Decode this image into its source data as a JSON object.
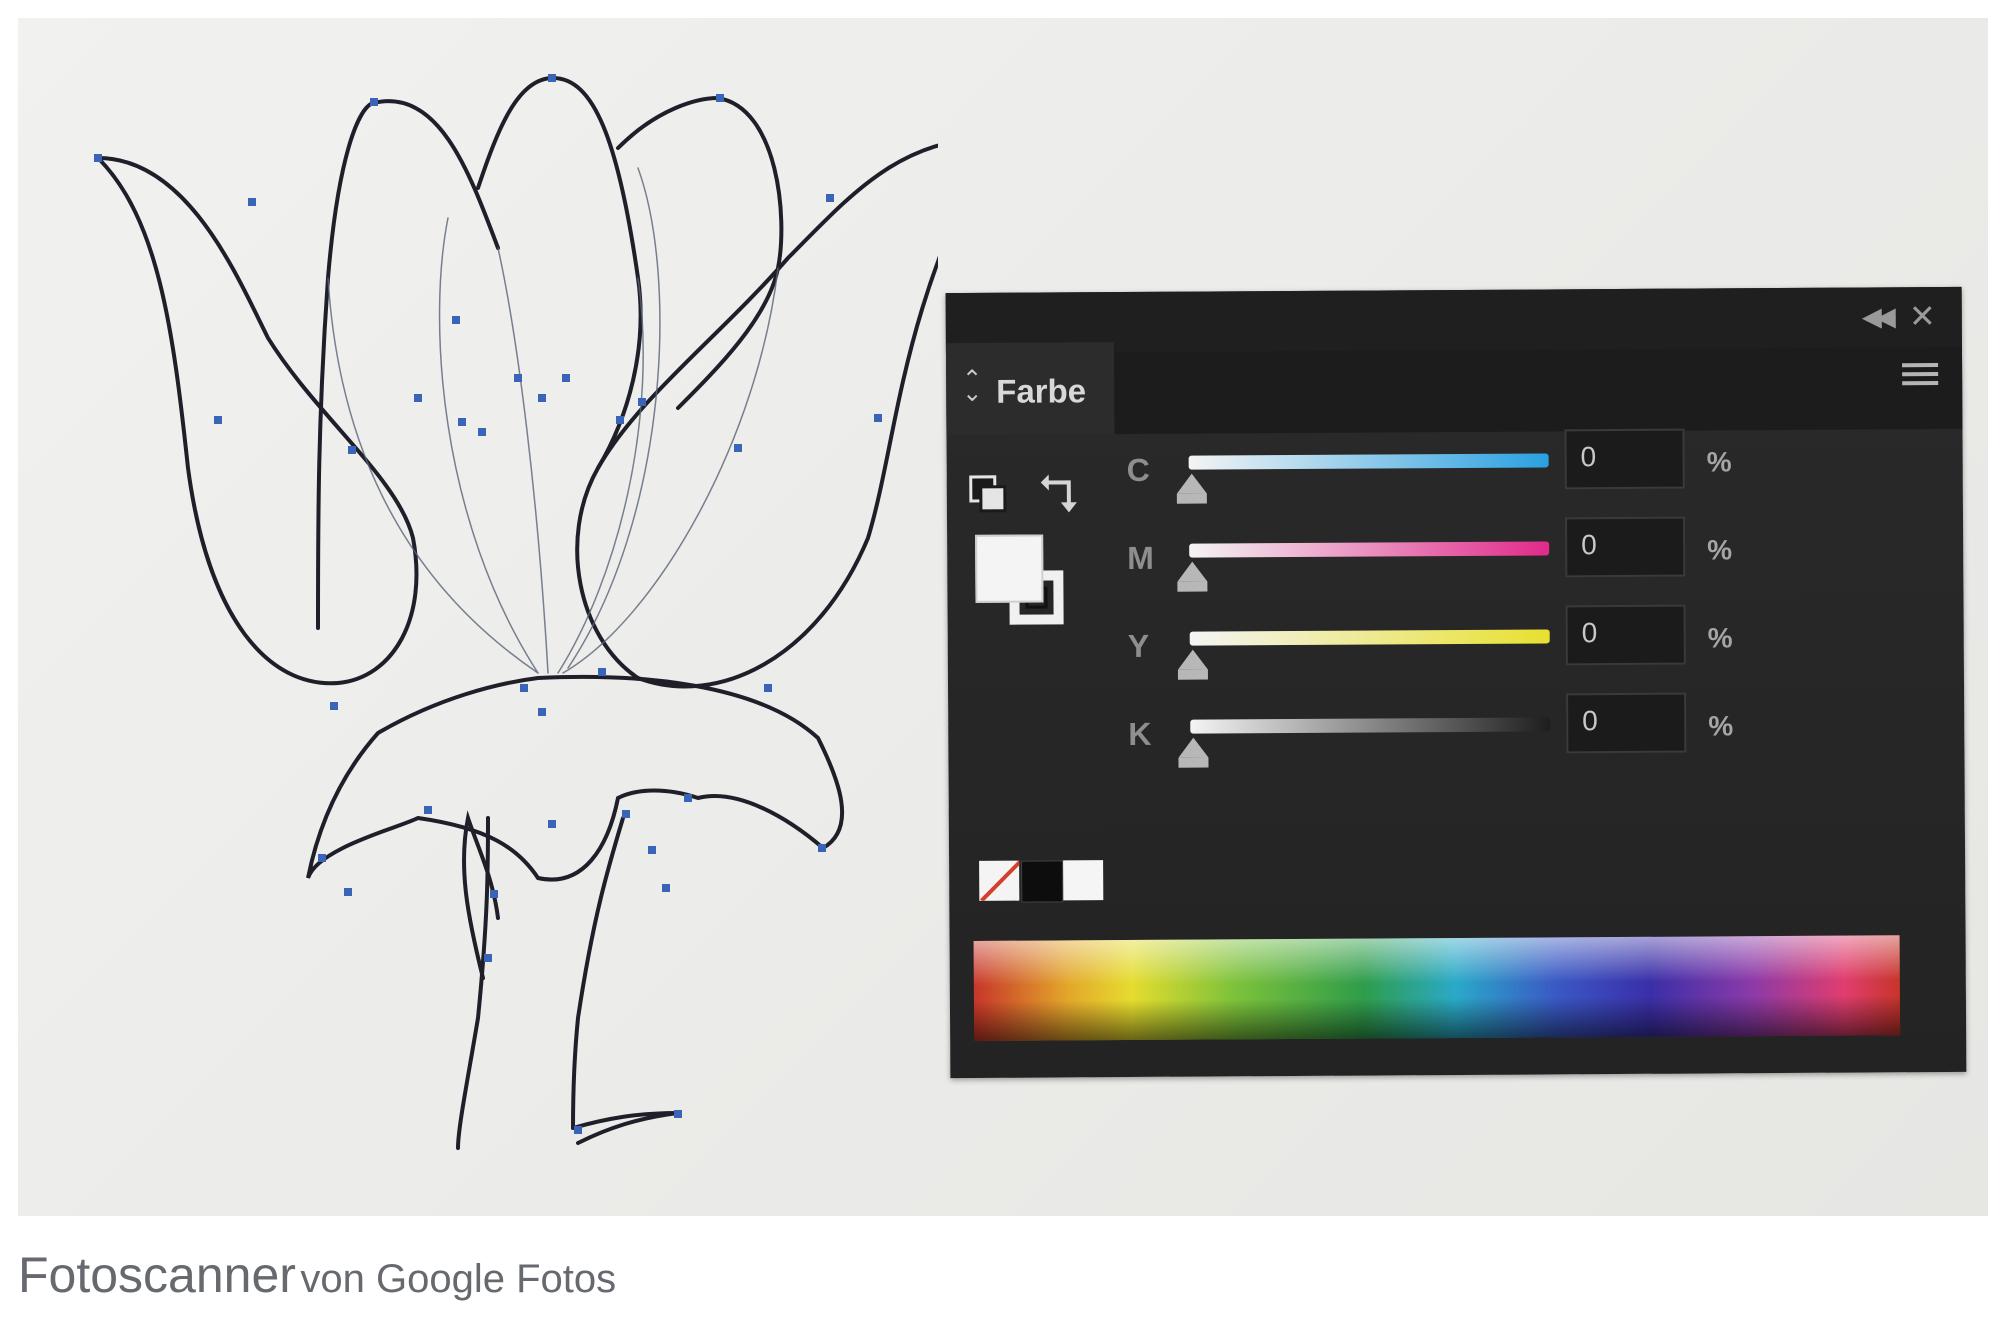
{
  "panel": {
    "tab_label": "Farbe",
    "channels": [
      {
        "letter": "C",
        "value": "0",
        "unit": "%",
        "level": 0
      },
      {
        "letter": "M",
        "value": "0",
        "unit": "%",
        "level": 0
      },
      {
        "letter": "Y",
        "value": "0",
        "unit": "%",
        "level": 0
      },
      {
        "letter": "K",
        "value": "0",
        "unit": "%",
        "level": 0
      }
    ]
  },
  "caption": {
    "app_name": "Fotoscanner",
    "rest": "von Google Fotos"
  },
  "colors": {
    "anchor_point": "#3a64b8",
    "path_stroke": "#1f1f2a",
    "panel_bg": "#262626",
    "cyan": "#2aa0e0",
    "magenta": "#e02a8a",
    "yellow": "#e8e030",
    "black": "#3a3a3a"
  },
  "icons": [
    "collapse-icon",
    "close-icon",
    "menu-icon",
    "default-colors-icon",
    "swap-colors-icon"
  ]
}
